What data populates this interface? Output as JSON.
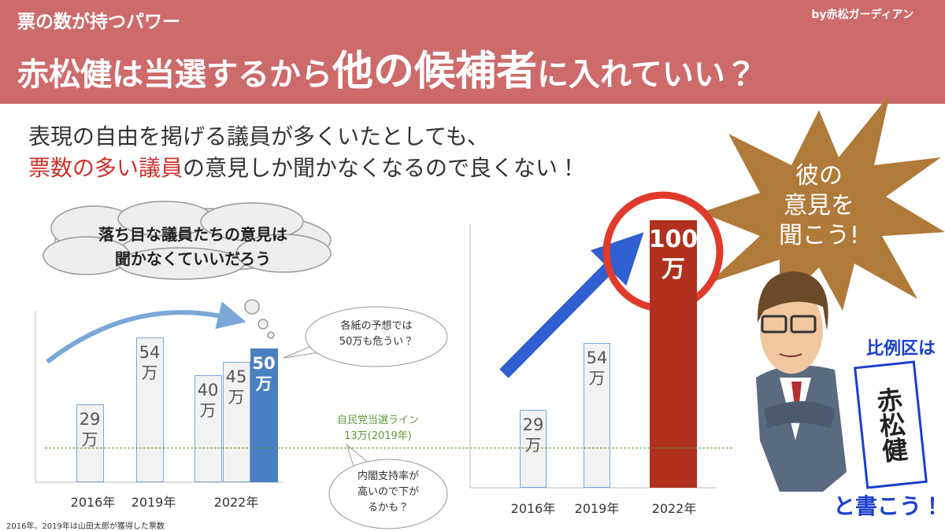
{
  "header": {
    "kicker": "票の数が持つパワー",
    "credit": "by赤松ガーディアン",
    "title_parts": [
      "赤松健は当選するから",
      "他の候補者",
      "に入れていい？"
    ]
  },
  "lead": {
    "line1": "表現の自由を掲げる議員が多くいたとしても、",
    "line2_highlight": "票数の多い議員",
    "line2_rest": "の意見しか聞かなくなるので良くない！"
  },
  "chart_data": [
    {
      "type": "bar",
      "groups": [
        {
          "category": "2016年",
          "bars": [
            {
              "value": 29,
              "value_label": "29万",
              "color": "#f2f2f2"
            }
          ]
        },
        {
          "category": "2019年",
          "bars": [
            {
              "value": 54,
              "value_label": "54万",
              "color": "#f2f2f2"
            }
          ]
        },
        {
          "category": "2022年",
          "bars": [
            {
              "value": 40,
              "value_label": "40万",
              "color": "#f2f2f2"
            },
            {
              "value": 45,
              "value_label": "45万",
              "color": "#f2f2f2"
            },
            {
              "value": 50,
              "value_label": "50万",
              "color": "#4a7fc1"
            }
          ]
        }
      ]
    },
    {
      "type": "bar",
      "groups": [
        {
          "category": "2016年",
          "bars": [
            {
              "value": 29,
              "value_label": "29万",
              "color": "#f2f2f2"
            }
          ]
        },
        {
          "category": "2019年",
          "bars": [
            {
              "value": 54,
              "value_label": "54万",
              "color": "#f2f2f2"
            }
          ]
        },
        {
          "category": "2022年",
          "bars": [
            {
              "value": 100,
              "value_label": "100万",
              "color": "#b0321e"
            }
          ]
        }
      ]
    }
  ],
  "reference_line": {
    "value": 13,
    "label": "自民党当選ライン\n13万(2019年)",
    "color": "#5a9a3a"
  },
  "callouts": {
    "thought": "落ち目な議員たちの意見は\n聞かなくていいだろう",
    "forecast": "各紙の予想では\n50万も危うい？",
    "approval": "内閣支持率が\n高いので下が\nるかも？",
    "burst": "彼の\n意見を\n聞こう!"
  },
  "ballot": {
    "prefix": "比例区は",
    "name": "赤松健",
    "suffix": "と書こう！"
  },
  "footnote": "2016年、2019年は山田太郎が獲得した票数"
}
